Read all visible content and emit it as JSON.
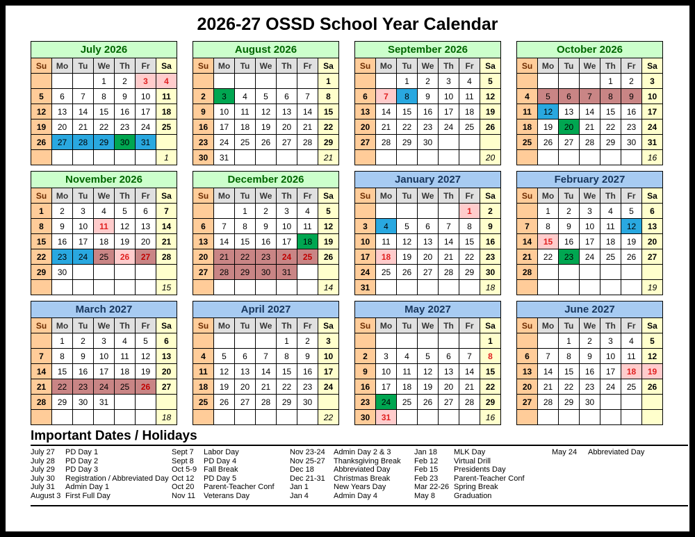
{
  "title": "2026-27 OSSD School Year Calendar",
  "day_headers": [
    "Su",
    "Mo",
    "Tu",
    "We",
    "Th",
    "Fr",
    "Sa"
  ],
  "colors": {
    "sunday_col": "#FFCC99",
    "saturday_col": "#FFFFCC",
    "weekday_header": "#E0E0E0",
    "month_header_green_bg": "#CCFFCC",
    "month_header_green_text": "#006600",
    "month_header_blue_bg": "#A7CBF2",
    "month_header_blue_text": "#17365D",
    "highlight_blue": "#29A8E0",
    "highlight_green": "#00A651",
    "highlight_pink": "#FFCCCC",
    "highlight_mauve": "#C98585",
    "holiday_red_text": "#E02020"
  },
  "months": [
    {
      "name": "July 2026",
      "style": "green",
      "count": "1",
      "weeks": [
        [
          "",
          "",
          "",
          "1",
          "2",
          "3",
          "4"
        ],
        [
          "5",
          "6",
          "7",
          "8",
          "9",
          "10",
          "11"
        ],
        [
          "12",
          "13",
          "14",
          "15",
          "16",
          "17",
          "18"
        ],
        [
          "19",
          "20",
          "21",
          "22",
          "23",
          "24",
          "25"
        ],
        [
          "26",
          "27",
          "28",
          "29",
          "30",
          "31",
          ""
        ],
        [
          "",
          "",
          "",
          "",
          "",
          "",
          ""
        ]
      ],
      "highlights": {
        "3": "pink",
        "4": "pink",
        "27": "blue",
        "28": "blue",
        "29": "blue",
        "30": "green",
        "31": "blue"
      }
    },
    {
      "name": "August 2026",
      "style": "green",
      "count": "21",
      "weeks": [
        [
          "",
          "",
          "",
          "",
          "",
          "",
          "1"
        ],
        [
          "2",
          "3",
          "4",
          "5",
          "6",
          "7",
          "8"
        ],
        [
          "9",
          "10",
          "11",
          "12",
          "13",
          "14",
          "15"
        ],
        [
          "16",
          "17",
          "18",
          "19",
          "20",
          "21",
          "22"
        ],
        [
          "23",
          "24",
          "25",
          "26",
          "27",
          "28",
          "29"
        ],
        [
          "30",
          "31",
          "",
          "",
          "",
          "",
          ""
        ]
      ],
      "highlights": {
        "3": "green"
      }
    },
    {
      "name": "September 2026",
      "style": "green",
      "count": "20",
      "weeks": [
        [
          "",
          "",
          "1",
          "2",
          "3",
          "4",
          "5"
        ],
        [
          "6",
          "7",
          "8",
          "9",
          "10",
          "11",
          "12"
        ],
        [
          "13",
          "14",
          "15",
          "16",
          "17",
          "18",
          "19"
        ],
        [
          "20",
          "21",
          "22",
          "23",
          "24",
          "25",
          "26"
        ],
        [
          "27",
          "28",
          "29",
          "30",
          "",
          "",
          ""
        ],
        [
          "",
          "",
          "",
          "",
          "",
          "",
          ""
        ]
      ],
      "highlights": {
        "7": "pink",
        "8": "blue"
      }
    },
    {
      "name": "October 2026",
      "style": "green",
      "count": "16",
      "weeks": [
        [
          "",
          "",
          "",
          "",
          "1",
          "2",
          "3"
        ],
        [
          "4",
          "5",
          "6",
          "7",
          "8",
          "9",
          "10"
        ],
        [
          "11",
          "12",
          "13",
          "14",
          "15",
          "16",
          "17"
        ],
        [
          "18",
          "19",
          "20",
          "21",
          "22",
          "23",
          "24"
        ],
        [
          "25",
          "26",
          "27",
          "28",
          "29",
          "30",
          "31"
        ],
        [
          "",
          "",
          "",
          "",
          "",
          "",
          ""
        ]
      ],
      "highlights": {
        "5": "mauve",
        "6": "mauve",
        "7": "mauve",
        "8": "mauve",
        "9": "mauve",
        "12": "blue",
        "20": "green"
      }
    },
    {
      "name": "November 2026",
      "style": "green",
      "count": "15",
      "weeks": [
        [
          "1",
          "2",
          "3",
          "4",
          "5",
          "6",
          "7"
        ],
        [
          "8",
          "9",
          "10",
          "11",
          "12",
          "13",
          "14"
        ],
        [
          "15",
          "16",
          "17",
          "18",
          "19",
          "20",
          "21"
        ],
        [
          "22",
          "23",
          "24",
          "25",
          "26",
          "27",
          "28"
        ],
        [
          "29",
          "30",
          "",
          "",
          "",
          "",
          ""
        ],
        [
          "",
          "",
          "",
          "",
          "",
          "",
          ""
        ]
      ],
      "highlights": {
        "11": "pink",
        "23": "blue",
        "24": "blue",
        "25": "mauve",
        "26": "pink",
        "27": "mauve-red"
      }
    },
    {
      "name": "December 2026",
      "style": "green",
      "count": "14",
      "weeks": [
        [
          "",
          "",
          "1",
          "2",
          "3",
          "4",
          "5"
        ],
        [
          "6",
          "7",
          "8",
          "9",
          "10",
          "11",
          "12"
        ],
        [
          "13",
          "14",
          "15",
          "16",
          "17",
          "18",
          "19"
        ],
        [
          "20",
          "21",
          "22",
          "23",
          "24",
          "25",
          "26"
        ],
        [
          "27",
          "28",
          "29",
          "30",
          "31",
          "",
          ""
        ],
        [
          "",
          "",
          "",
          "",
          "",
          "",
          ""
        ]
      ],
      "highlights": {
        "18": "green",
        "21": "mauve",
        "22": "mauve",
        "23": "mauve",
        "24": "mauve-red",
        "25": "mauve-red",
        "28": "mauve",
        "29": "mauve",
        "30": "mauve",
        "31": "mauve"
      }
    },
    {
      "name": "January 2027",
      "style": "blue",
      "count": "18",
      "weeks": [
        [
          "",
          "",
          "",
          "",
          "",
          "1",
          "2"
        ],
        [
          "3",
          "4",
          "5",
          "6",
          "7",
          "8",
          "9"
        ],
        [
          "10",
          "11",
          "12",
          "13",
          "14",
          "15",
          "16"
        ],
        [
          "17",
          "18",
          "19",
          "20",
          "21",
          "22",
          "23"
        ],
        [
          "24",
          "25",
          "26",
          "27",
          "28",
          "29",
          "30"
        ],
        [
          "31",
          "",
          "",
          "",
          "",
          "",
          ""
        ]
      ],
      "highlights": {
        "1": "pink",
        "4": "blue",
        "18": "pink"
      }
    },
    {
      "name": "February 2027",
      "style": "blue",
      "count": "19",
      "weeks": [
        [
          "",
          "1",
          "2",
          "3",
          "4",
          "5",
          "6"
        ],
        [
          "7",
          "8",
          "9",
          "10",
          "11",
          "12",
          "13"
        ],
        [
          "14",
          "15",
          "16",
          "17",
          "18",
          "19",
          "20"
        ],
        [
          "21",
          "22",
          "23",
          "24",
          "25",
          "26",
          "27"
        ],
        [
          "28",
          "",
          "",
          "",
          "",
          "",
          ""
        ],
        [
          "",
          "",
          "",
          "",
          "",
          "",
          ""
        ]
      ],
      "highlights": {
        "12": "blue",
        "15": "pink",
        "23": "green"
      }
    },
    {
      "name": "March 2027",
      "style": "blue",
      "count": "18",
      "weeks": [
        [
          "",
          "1",
          "2",
          "3",
          "4",
          "5",
          "6"
        ],
        [
          "7",
          "8",
          "9",
          "10",
          "11",
          "12",
          "13"
        ],
        [
          "14",
          "15",
          "16",
          "17",
          "18",
          "19",
          "20"
        ],
        [
          "21",
          "22",
          "23",
          "24",
          "25",
          "26",
          "27"
        ],
        [
          "28",
          "29",
          "30",
          "31",
          "",
          "",
          ""
        ],
        [
          "",
          "",
          "",
          "",
          "",
          "",
          ""
        ]
      ],
      "highlights": {
        "22": "mauve",
        "23": "mauve",
        "24": "mauve",
        "25": "mauve",
        "26": "mauve-red"
      }
    },
    {
      "name": "April 2027",
      "style": "blue",
      "count": "22",
      "weeks": [
        [
          "",
          "",
          "",
          "",
          "1",
          "2",
          "3"
        ],
        [
          "4",
          "5",
          "6",
          "7",
          "8",
          "9",
          "10"
        ],
        [
          "11",
          "12",
          "13",
          "14",
          "15",
          "16",
          "17"
        ],
        [
          "18",
          "19",
          "20",
          "21",
          "22",
          "23",
          "24"
        ],
        [
          "25",
          "26",
          "27",
          "28",
          "29",
          "30",
          ""
        ],
        [
          "",
          "",
          "",
          "",
          "",
          "",
          ""
        ]
      ],
      "highlights": {}
    },
    {
      "name": "May 2027",
      "style": "blue",
      "count": "16",
      "weeks": [
        [
          "",
          "",
          "",
          "",
          "",
          "",
          "1"
        ],
        [
          "2",
          "3",
          "4",
          "5",
          "6",
          "7",
          "8"
        ],
        [
          "9",
          "10",
          "11",
          "12",
          "13",
          "14",
          "15"
        ],
        [
          "16",
          "17",
          "18",
          "19",
          "20",
          "21",
          "22"
        ],
        [
          "23",
          "24",
          "25",
          "26",
          "27",
          "28",
          "29"
        ],
        [
          "30",
          "31",
          "",
          "",
          "",
          "",
          ""
        ]
      ],
      "highlights": {
        "8": "red",
        "24": "green",
        "31": "pink"
      }
    },
    {
      "name": "June 2027",
      "style": "blue",
      "count": "",
      "weeks": [
        [
          "",
          "",
          "1",
          "2",
          "3",
          "4",
          "5"
        ],
        [
          "6",
          "7",
          "8",
          "9",
          "10",
          "11",
          "12"
        ],
        [
          "13",
          "14",
          "15",
          "16",
          "17",
          "18",
          "19"
        ],
        [
          "20",
          "21",
          "22",
          "23",
          "24",
          "25",
          "26"
        ],
        [
          "27",
          "28",
          "29",
          "30",
          "",
          "",
          ""
        ],
        [
          "",
          "",
          "",
          "",
          "",
          "",
          ""
        ]
      ],
      "highlights": {
        "18": "pink",
        "19": "pink"
      }
    }
  ],
  "important_dates": {
    "heading": "Important Dates / Holidays",
    "columns": [
      [
        {
          "date": "July 27",
          "label": "PD Day 1"
        },
        {
          "date": "July 28",
          "label": "PD Day 2"
        },
        {
          "date": "July 29",
          "label": "PD Day 3"
        },
        {
          "date": "July 30",
          "label": "Registration / Abbreviated Day"
        },
        {
          "date": "July 31",
          "label": "Admin Day 1"
        },
        {
          "date": "August 3",
          "label": "First Full Day"
        }
      ],
      [
        {
          "date": "Sept 7",
          "label": "Labor Day"
        },
        {
          "date": "Sept 8",
          "label": "PD Day 4"
        },
        {
          "date": "Oct 5-9",
          "label": "Fall Break"
        },
        {
          "date": "Oct 12",
          "label": "PD Day 5"
        },
        {
          "date": "Oct 20",
          "label": "Parent-Teacher Conf"
        },
        {
          "date": "Nov 11",
          "label": "Veterans Day"
        }
      ],
      [
        {
          "date": "Nov 23-24",
          "label": "Admin Day 2 & 3"
        },
        {
          "date": "Nov 25-27",
          "label": "Thanksgiving Break"
        },
        {
          "date": "Dec 18",
          "label": "Abbreviated Day"
        },
        {
          "date": "Dec 21-31",
          "label": "Christmas Break"
        },
        {
          "date": "Jan 1",
          "label": "New Years Day"
        },
        {
          "date": "Jan 4",
          "label": "Admin Day 4"
        }
      ],
      [
        {
          "date": "Jan 18",
          "label": "MLK Day"
        },
        {
          "date": "Feb 12",
          "label": "Virtual Drill"
        },
        {
          "date": "Feb 15",
          "label": "Presidents Day"
        },
        {
          "date": "Feb 23",
          "label": "Parent-Teacher Conf"
        },
        {
          "date": "Mar 22-26",
          "label": "Spring Break"
        },
        {
          "date": "May 8",
          "label": "Graduation"
        }
      ],
      [
        {
          "date": "May 24",
          "label": "Abbreviated Day"
        }
      ]
    ]
  }
}
